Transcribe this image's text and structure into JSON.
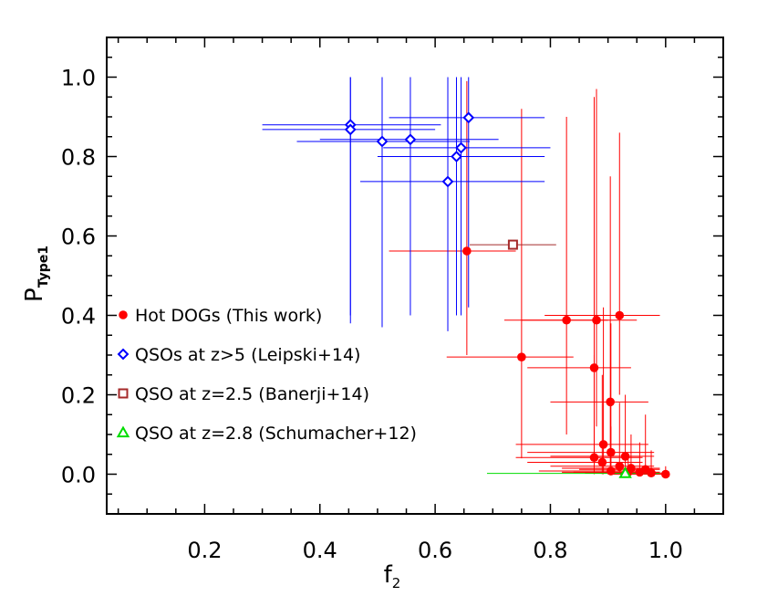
{
  "chart_data": {
    "type": "scatter",
    "xlabel": "f",
    "xlabel_sub": "2",
    "ylabel": "P",
    "ylabel_sub": "Type1",
    "xlim": [
      0.03,
      1.1
    ],
    "ylim": [
      -0.1,
      1.1
    ],
    "xticks": [
      0.2,
      0.4,
      0.6,
      0.8,
      1.0
    ],
    "xtick_labels": [
      "0.2",
      "0.4",
      "0.6",
      "0.8",
      "1.0"
    ],
    "yticks": [
      0.0,
      0.2,
      0.4,
      0.6,
      0.8,
      1.0
    ],
    "ytick_labels": [
      "0.0",
      "0.2",
      "0.4",
      "0.6",
      "0.8",
      "1.0"
    ],
    "legend_position": "left",
    "grid": false,
    "series": [
      {
        "name": "Hot DOGs (This work)",
        "marker": "circle",
        "color": "#ff0000",
        "points": [
          {
            "x": 0.655,
            "y": 0.562,
            "xlo": 0.52,
            "xhi": 0.74,
            "ylo": 0.3,
            "yhi": 0.99
          },
          {
            "x": 0.828,
            "y": 0.388,
            "xlo": 0.72,
            "xhi": 0.9,
            "ylo": 0.1,
            "yhi": 0.9
          },
          {
            "x": 0.88,
            "y": 0.388,
            "xlo": 0.75,
            "xhi": 0.95,
            "ylo": 0.12,
            "yhi": 0.97
          },
          {
            "x": 0.92,
            "y": 0.4,
            "xlo": 0.79,
            "xhi": 0.99,
            "ylo": 0.2,
            "yhi": 0.86
          },
          {
            "x": 0.75,
            "y": 0.295,
            "xlo": 0.62,
            "xhi": 0.84,
            "ylo": 0.04,
            "yhi": 0.92
          },
          {
            "x": 0.876,
            "y": 0.268,
            "xlo": 0.76,
            "xhi": 0.94,
            "ylo": 0.04,
            "yhi": 0.95
          },
          {
            "x": 0.904,
            "y": 0.182,
            "xlo": 0.8,
            "xhi": 0.97,
            "ylo": 0.02,
            "yhi": 0.75
          },
          {
            "x": 0.892,
            "y": 0.075,
            "xlo": 0.74,
            "xhi": 0.97,
            "ylo": 0.0,
            "yhi": 0.42
          },
          {
            "x": 0.905,
            "y": 0.055,
            "xlo": 0.76,
            "xhi": 0.98,
            "ylo": 0.0,
            "yhi": 0.38
          },
          {
            "x": 0.876,
            "y": 0.042,
            "xlo": 0.74,
            "xhi": 0.96,
            "ylo": 0.0,
            "yhi": 0.3
          },
          {
            "x": 0.93,
            "y": 0.045,
            "xlo": 0.8,
            "xhi": 0.98,
            "ylo": 0.0,
            "yhi": 0.2
          },
          {
            "x": 0.89,
            "y": 0.03,
            "xlo": 0.76,
            "xhi": 0.96,
            "ylo": 0.0,
            "yhi": 0.25
          },
          {
            "x": 0.92,
            "y": 0.02,
            "xlo": 0.8,
            "xhi": 0.98,
            "ylo": 0.0,
            "yhi": 0.18
          },
          {
            "x": 0.94,
            "y": 0.015,
            "xlo": 0.82,
            "xhi": 0.99,
            "ylo": 0.0,
            "yhi": 0.1
          },
          {
            "x": 0.965,
            "y": 0.012,
            "xlo": 0.85,
            "xhi": 0.99,
            "ylo": 0.0,
            "yhi": 0.15
          },
          {
            "x": 0.905,
            "y": 0.008,
            "xlo": 0.78,
            "xhi": 0.98,
            "ylo": 0.0,
            "yhi": 0.12
          },
          {
            "x": 0.955,
            "y": 0.005,
            "xlo": 0.84,
            "xhi": 0.99,
            "ylo": 0.0,
            "yhi": 0.08
          },
          {
            "x": 0.975,
            "y": 0.003,
            "xlo": 0.86,
            "xhi": 1.0,
            "ylo": 0.0,
            "yhi": 0.06
          },
          {
            "x": 0.935,
            "y": 0.005,
            "xlo": 0.82,
            "xhi": 0.99,
            "ylo": 0.0,
            "yhi": 0.05
          },
          {
            "x": 1.0,
            "y": 0.0,
            "xlo": 0.9,
            "xhi": 1.0,
            "ylo": 0.0,
            "yhi": 0.02
          }
        ]
      },
      {
        "name": "QSOs at z>5 (Leipski+14)",
        "marker": "diamond",
        "color": "#0000ff",
        "points": [
          {
            "x": 0.453,
            "y": 0.88,
            "xlo": 0.3,
            "xhi": 0.61,
            "ylo": 0.4,
            "yhi": 1.0
          },
          {
            "x": 0.453,
            "y": 0.868,
            "xlo": 0.3,
            "xhi": 0.6,
            "ylo": 0.38,
            "yhi": 1.0
          },
          {
            "x": 0.508,
            "y": 0.838,
            "xlo": 0.36,
            "xhi": 0.66,
            "ylo": 0.37,
            "yhi": 1.0
          },
          {
            "x": 0.557,
            "y": 0.843,
            "xlo": 0.4,
            "xhi": 0.71,
            "ylo": 0.4,
            "yhi": 1.0
          },
          {
            "x": 0.658,
            "y": 0.898,
            "xlo": 0.52,
            "xhi": 0.79,
            "ylo": 0.42,
            "yhi": 1.0
          },
          {
            "x": 0.645,
            "y": 0.822,
            "xlo": 0.51,
            "xhi": 0.8,
            "ylo": 0.4,
            "yhi": 1.0
          },
          {
            "x": 0.637,
            "y": 0.8,
            "xlo": 0.5,
            "xhi": 0.79,
            "ylo": 0.4,
            "yhi": 1.0
          },
          {
            "x": 0.622,
            "y": 0.737,
            "xlo": 0.47,
            "xhi": 0.79,
            "ylo": 0.36,
            "yhi": 1.0
          }
        ]
      },
      {
        "name": "QSO at z=2.5 (Banerji+14)",
        "marker": "square",
        "color": "#a52a2a",
        "points": [
          {
            "x": 0.735,
            "y": 0.578,
            "xlo": 0.66,
            "xhi": 0.81,
            "ylo": 0.578,
            "yhi": 0.578
          }
        ]
      },
      {
        "name": "QSO at z=2.8 (Schumacher+12)",
        "marker": "triangle",
        "color": "#00dd00",
        "points": [
          {
            "x": 0.93,
            "y": 0.002,
            "xlo": 0.69,
            "xhi": 0.99,
            "ylo": 0.002,
            "yhi": 0.002
          }
        ]
      }
    ]
  }
}
